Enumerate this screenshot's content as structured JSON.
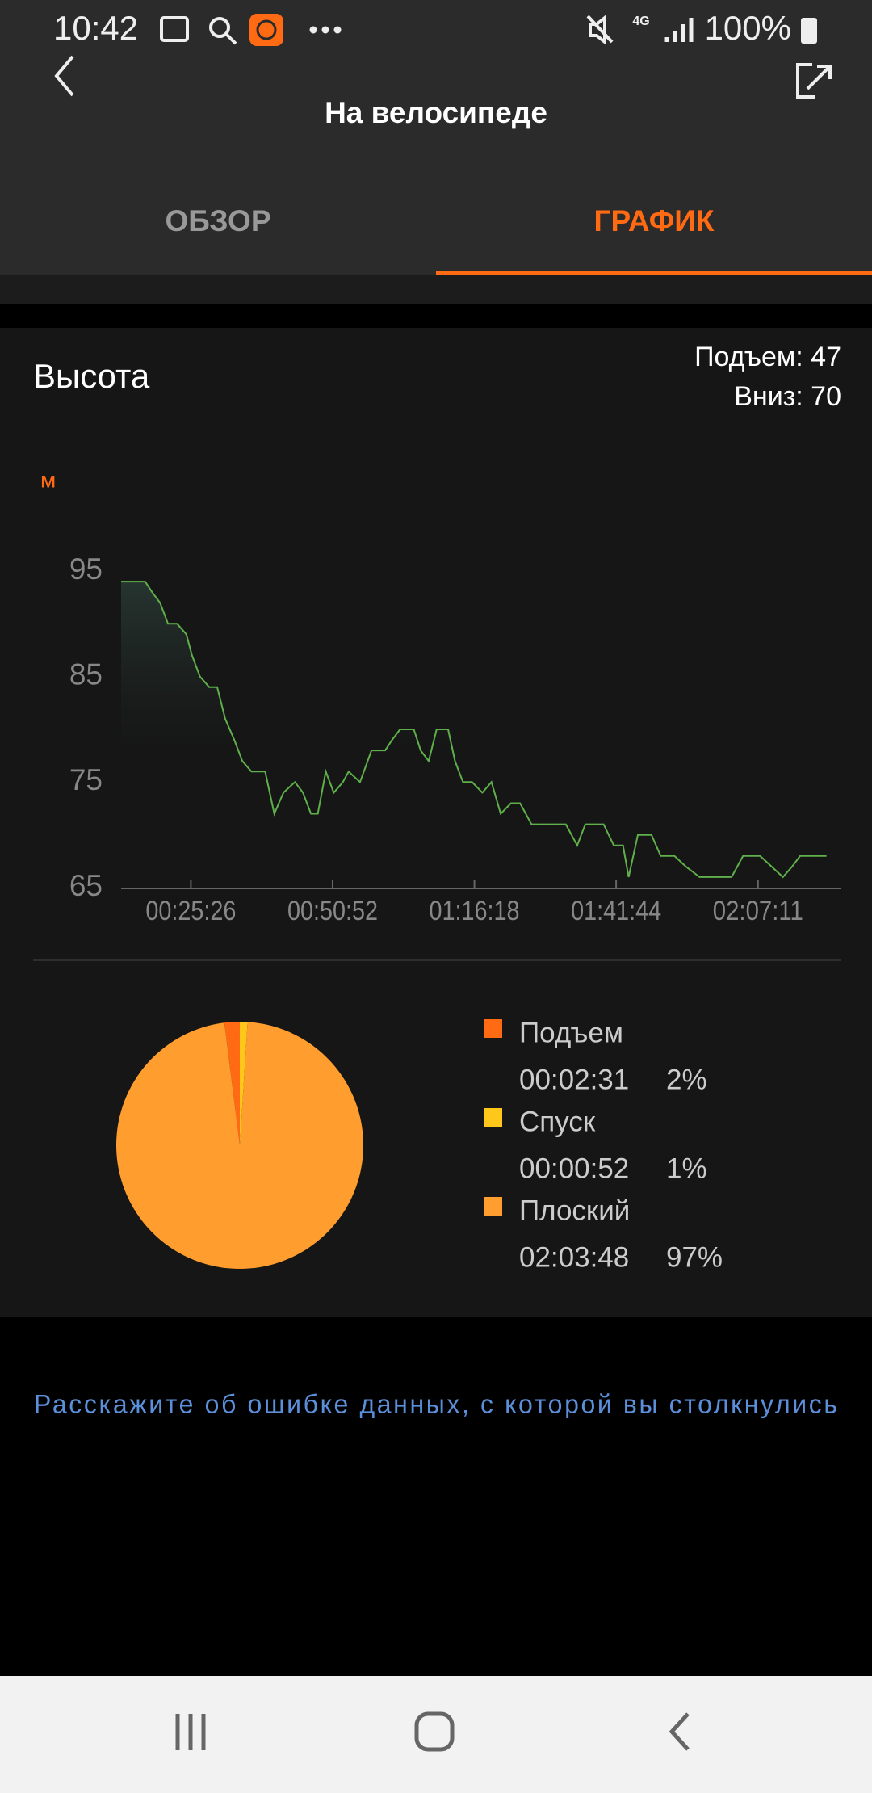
{
  "status_bar": {
    "time": "10:42",
    "network": "4G",
    "battery": "100%"
  },
  "header": {
    "title": "На велосипеде"
  },
  "tabs": [
    "ОБЗОР",
    "ГРАФИК"
  ],
  "elevation": {
    "title": "Высота",
    "stats": [
      "Подъем: 47",
      "Вниз: 70"
    ],
    "chart": {
      "type": "line",
      "unit": "м",
      "color": "#5fb04a",
      "xlim": [
        775,
        8528
      ],
      "ylim": [
        65,
        95
      ],
      "yticks": [
        65,
        75,
        85,
        95
      ],
      "xticks": [
        {
          "value": 1526,
          "label": "00:25:26"
        },
        {
          "value": 3052,
          "label": "00:50:52"
        },
        {
          "value": 4578,
          "label": "01:16:18"
        },
        {
          "value": 6104,
          "label": "01:41:44"
        },
        {
          "value": 7631,
          "label": "02:07:11"
        }
      ],
      "x": [
        775,
        1034,
        1108,
        1194,
        1280,
        1378,
        1477,
        1538,
        1624,
        1723,
        1809,
        1895,
        1994,
        2080,
        2178,
        2326,
        2424,
        2523,
        2646,
        2732,
        2818,
        2892,
        2978,
        3064,
        3163,
        3224,
        3347,
        3470,
        3618,
        3692,
        3778,
        3926,
        4000,
        4086,
        4172,
        4295,
        4369,
        4455,
        4553,
        4664,
        4762,
        4861,
        4972,
        5070,
        5193,
        5378,
        5562,
        5685,
        5772,
        5969,
        6079,
        6178,
        6239,
        6338,
        6485,
        6584,
        6731,
        6854,
        7002,
        7347,
        7470,
        7654,
        7777,
        7900,
        7999,
        8085,
        8368
      ],
      "values": [
        94,
        94,
        93,
        92,
        90,
        90,
        89,
        87,
        85,
        84,
        84,
        81,
        79,
        77,
        76,
        76,
        72,
        74,
        75,
        74,
        72,
        72,
        76,
        74,
        75,
        76,
        75,
        78,
        78,
        79,
        80,
        80,
        78,
        77,
        80,
        80,
        77,
        75,
        75,
        74,
        75,
        72,
        73,
        73,
        71,
        71,
        71,
        69,
        71,
        71,
        69,
        69,
        66,
        70,
        70,
        68,
        68,
        67,
        66,
        66,
        68,
        68,
        67,
        66,
        67,
        68,
        68
      ]
    },
    "pie": {
      "type": "pie",
      "series": [
        {
          "name": "Подъем",
          "time": "00:02:31",
          "value": 2,
          "value_label": "2%",
          "color": "#ff6a13"
        },
        {
          "name": "Спуск",
          "time": "00:00:52",
          "value": 1,
          "value_label": "1%",
          "color": "#ffc71a"
        },
        {
          "name": "Плоский",
          "time": "02:03:48",
          "value": 97,
          "value_label": "97%",
          "color": "#ff9d2e"
        }
      ]
    }
  },
  "footer": {
    "link": "Расскажите об ошибке данных, с которой вы столкнулись"
  }
}
